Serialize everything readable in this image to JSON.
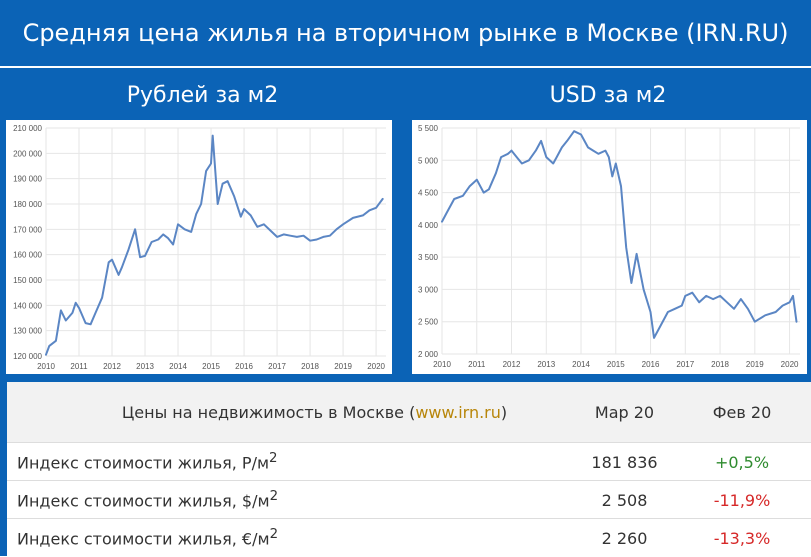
{
  "header": {
    "title": "Средняя цена жилья на вторичном рынке в Москве (IRN.RU)"
  },
  "charts_titles": {
    "left": "Рублей за м2",
    "right": "USD за м2"
  },
  "chart_data": [
    {
      "type": "line",
      "title": "Рублей за м2",
      "xlim": [
        2010,
        2020.3
      ],
      "ylim": [
        120000,
        210000
      ],
      "x_ticks": [
        2010,
        2011,
        2012,
        2013,
        2014,
        2015,
        2016,
        2017,
        2018,
        2019,
        2020
      ],
      "y_ticks": [
        120000,
        130000,
        140000,
        150000,
        160000,
        170000,
        180000,
        190000,
        200000,
        210000
      ],
      "y_tick_labels": [
        "120 000",
        "130 000",
        "140 000",
        "150 000",
        "160 000",
        "170 000",
        "180 000",
        "190 000",
        "200 000",
        "210 000"
      ],
      "grid": true,
      "series": [
        {
          "x": [
            2010.0,
            2010.1,
            2010.3,
            2010.45,
            2010.6,
            2010.8,
            2010.9,
            2011.0,
            2011.2,
            2011.35,
            2011.5,
            2011.7,
            2011.9,
            2012.0,
            2012.2,
            2012.3,
            2012.5,
            2012.7,
            2012.85,
            2013.0,
            2013.2,
            2013.4,
            2013.55,
            2013.7,
            2013.85,
            2014.0,
            2014.2,
            2014.4,
            2014.55,
            2014.7,
            2014.85,
            2015.0,
            2015.05,
            2015.2,
            2015.35,
            2015.5,
            2015.7,
            2015.9,
            2016.0,
            2016.2,
            2016.4,
            2016.6,
            2016.8,
            2017.0,
            2017.2,
            2017.4,
            2017.6,
            2017.8,
            2018.0,
            2018.2,
            2018.4,
            2018.6,
            2018.8,
            2019.0,
            2019.3,
            2019.6,
            2019.8,
            2020.0,
            2020.2
          ],
          "values": [
            120500,
            124000,
            126000,
            138000,
            134000,
            137000,
            141000,
            139000,
            133000,
            132500,
            137000,
            143000,
            157000,
            158000,
            152000,
            155000,
            162000,
            170000,
            159000,
            159500,
            165000,
            166000,
            168000,
            166500,
            164000,
            172000,
            170000,
            169000,
            176000,
            180000,
            193000,
            196000,
            207000,
            180000,
            188000,
            189000,
            183000,
            175000,
            178000,
            175500,
            171000,
            172000,
            169500,
            167000,
            168000,
            167500,
            167000,
            167500,
            165500,
            166000,
            167000,
            167500,
            170000,
            172000,
            174500,
            175500,
            177500,
            178500,
            182000
          ]
        }
      ]
    },
    {
      "type": "line",
      "title": "USD за м2",
      "xlim": [
        2010,
        2020.3
      ],
      "ylim": [
        2000,
        5500
      ],
      "x_ticks": [
        2010,
        2011,
        2012,
        2013,
        2014,
        2015,
        2016,
        2017,
        2018,
        2019,
        2020
      ],
      "y_ticks": [
        2000,
        2500,
        3000,
        3500,
        4000,
        4500,
        5000,
        5500
      ],
      "y_tick_labels": [
        "2 000",
        "2 500",
        "3 000",
        "3 500",
        "4 000",
        "4 500",
        "5 000",
        "5 500"
      ],
      "grid": true,
      "series": [
        {
          "x": [
            2010.0,
            2010.15,
            2010.35,
            2010.6,
            2010.8,
            2011.0,
            2011.2,
            2011.35,
            2011.55,
            2011.7,
            2011.9,
            2012.0,
            2012.15,
            2012.3,
            2012.5,
            2012.7,
            2012.85,
            2013.0,
            2013.2,
            2013.3,
            2013.45,
            2013.6,
            2013.8,
            2014.0,
            2014.2,
            2014.35,
            2014.5,
            2014.7,
            2014.8,
            2014.9,
            2015.0,
            2015.15,
            2015.3,
            2015.45,
            2015.6,
            2015.8,
            2016.0,
            2016.1,
            2016.3,
            2016.5,
            2016.7,
            2016.9,
            2017.0,
            2017.2,
            2017.4,
            2017.6,
            2017.8,
            2018.0,
            2018.2,
            2018.4,
            2018.6,
            2018.8,
            2019.0,
            2019.3,
            2019.6,
            2019.8,
            2020.0,
            2020.1,
            2020.2
          ],
          "values": [
            4050,
            4200,
            4400,
            4450,
            4600,
            4700,
            4500,
            4550,
            4800,
            5050,
            5100,
            5150,
            5050,
            4950,
            5000,
            5150,
            5300,
            5050,
            4950,
            5050,
            5200,
            5300,
            5450,
            5400,
            5200,
            5150,
            5100,
            5150,
            5050,
            4750,
            4950,
            4600,
            3650,
            3100,
            3550,
            3000,
            2650,
            2250,
            2450,
            2650,
            2700,
            2750,
            2900,
            2950,
            2800,
            2900,
            2850,
            2900,
            2800,
            2700,
            2850,
            2700,
            2500,
            2600,
            2650,
            2750,
            2800,
            2900,
            2500
          ]
        }
      ]
    }
  ],
  "table": {
    "header": {
      "label_main": "Цены на недвижимость в Москве (",
      "label_link": "www.irn.ru",
      "label_close": ")",
      "col_current": "Мар 20",
      "col_prev": "Фев 20"
    },
    "rows": [
      {
        "label": "Индекс стоимости жилья, Р/м",
        "value": "181 836",
        "change": "+0,5%",
        "change_color": "#2e8b2e"
      },
      {
        "label": "Индекс стоимости жилья, $/м",
        "value": "2 508",
        "change": "-11,9%",
        "change_color": "#d62828"
      },
      {
        "label": "Индекс стоимости жилья, €/м",
        "value": "2 260",
        "change": "-13,3%",
        "change_color": "#d62828"
      }
    ],
    "superscript": "2"
  }
}
